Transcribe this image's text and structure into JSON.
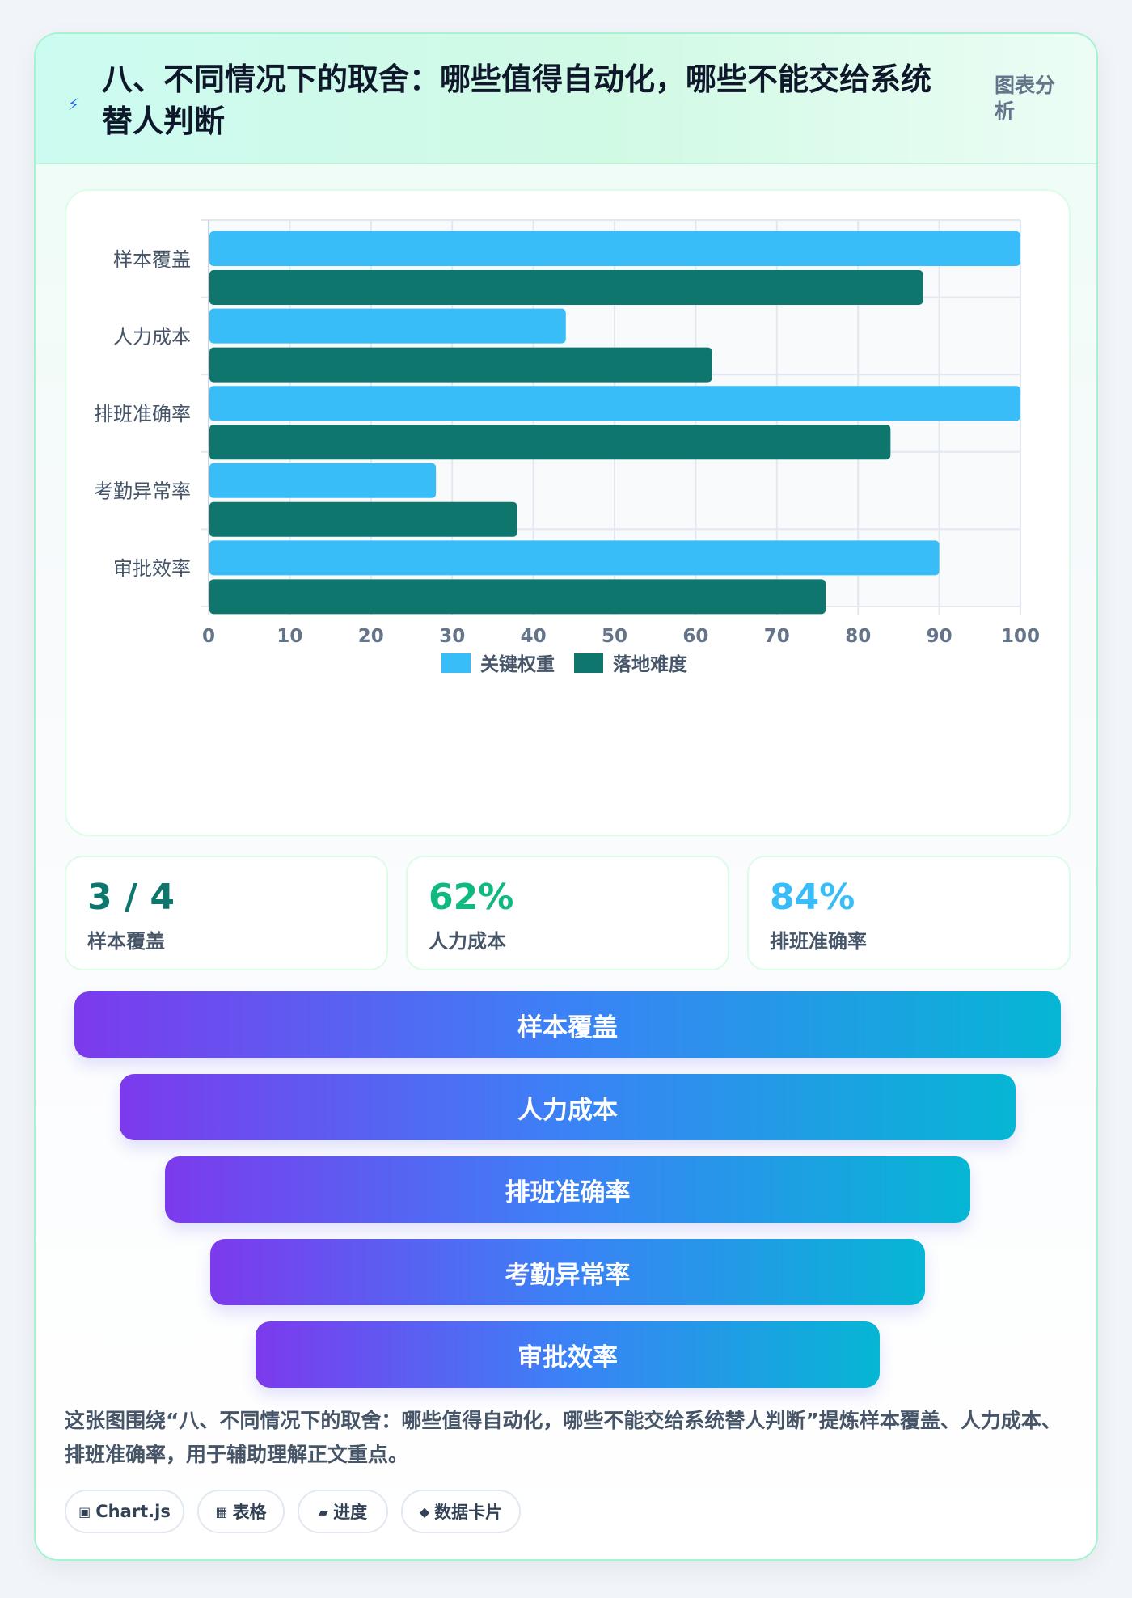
{
  "header": {
    "title": "八、不同情况下的取舍：哪些值得自动化，哪些不能交给系统替人判断",
    "tag": "图表分析",
    "icon": "lightning-icon"
  },
  "chart_data": {
    "type": "bar",
    "orientation": "horizontal",
    "categories": [
      "样本覆盖",
      "人力成本",
      "排班准确率",
      "考勤异常率",
      "审批效率"
    ],
    "series": [
      {
        "name": "关键权重",
        "color": "#38bdf8",
        "values": [
          100,
          44,
          100,
          28,
          90
        ]
      },
      {
        "name": "落地难度",
        "color": "#0f766e",
        "values": [
          88,
          62,
          84,
          38,
          76
        ]
      }
    ],
    "xlim": [
      0,
      100
    ],
    "xticks": [
      "0",
      "10",
      "20",
      "30",
      "40",
      "50",
      "60",
      "70",
      "80",
      "90",
      "100"
    ],
    "grid": true,
    "legend": "bottom"
  },
  "stats": [
    {
      "value": "3 / 4",
      "label": "样本覆盖",
      "color": "#0f766e"
    },
    {
      "value": "62%",
      "label": "人力成本",
      "color": "#10b981"
    },
    {
      "value": "84%",
      "label": "排班准确率",
      "color": "#38bdf8"
    }
  ],
  "funnel": [
    "样本覆盖",
    "人力成本",
    "排班准确率",
    "考勤异常率",
    "审批效率"
  ],
  "description": "这张图围绕“八、不同情况下的取舍：哪些值得自动化，哪些不能交给系统替人判断”提炼样本覆盖、人力成本、排班准确率，用于辅助理解正文重点。",
  "chips": [
    {
      "icon": "▣",
      "label": "Chart.js"
    },
    {
      "icon": "▦",
      "label": "表格"
    },
    {
      "icon": "▰",
      "label": "进度"
    },
    {
      "icon": "◆",
      "label": "数据卡片"
    }
  ]
}
